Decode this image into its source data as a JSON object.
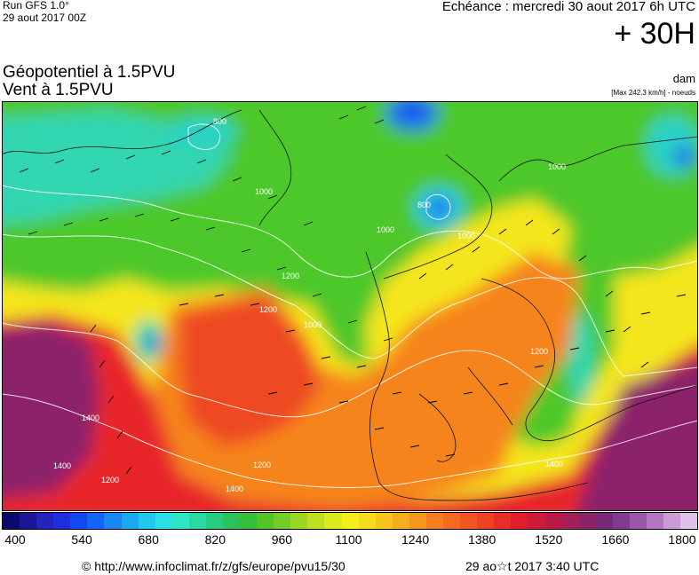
{
  "header": {
    "run_label": "Run GFS 1.0°",
    "run_date": "29 aout 2017 00Z",
    "echeance": "Echéance : mercredi 30 aout 2017 6h UTC",
    "lead_time": "+ 30H"
  },
  "titles": {
    "line1": "Géopotentiel à 1.5PVU",
    "line2": "Vent à 1.5PVU",
    "unit": "dam",
    "max_wind": "[Max 242.3 km/h] - noeuds"
  },
  "map": {
    "contour_labels": [
      "800",
      "800",
      "1000",
      "1000",
      "1000",
      "1000",
      "1000",
      "1200",
      "1200",
      "1200",
      "1200",
      "1200",
      "1400",
      "1400",
      "1400",
      "1400"
    ],
    "colors": {
      "purple": "#8a2a8f",
      "red": "#e8262a",
      "orange": "#f6761f",
      "yellow": "#f5e41c",
      "green": "#4cc72a",
      "teal": "#2bd6b4",
      "blue": "#1a78ea"
    }
  },
  "scale": {
    "ticks": [
      "400",
      "540",
      "680",
      "820",
      "960",
      "1100",
      "1240",
      "1380",
      "1520",
      "1660",
      "1800"
    ],
    "colors": [
      "#0b0a6c",
      "#1a1694",
      "#2323bd",
      "#1e2ede",
      "#1446f2",
      "#1464f6",
      "#1a86f2",
      "#1aa8ee",
      "#20c8ec",
      "#2ae0e4",
      "#30e4c4",
      "#2ad8a2",
      "#28cc7e",
      "#2ac25c",
      "#36be3a",
      "#52c42a",
      "#74cc26",
      "#9ad622",
      "#bede20",
      "#dcea1e",
      "#f4ee1c",
      "#f6dc1c",
      "#f6c61c",
      "#f6ae1c",
      "#f6961e",
      "#f67e20",
      "#f46a20",
      "#f25620",
      "#ee4222",
      "#e82e26",
      "#e01e2a",
      "#cc1c36",
      "#b81c46",
      "#a41e58",
      "#8c226a",
      "#7a287a",
      "#823a90",
      "#9a56a8",
      "#b476c0",
      "#cc9ad6",
      "#e0c2e8"
    ]
  },
  "footer": {
    "url": "© http://www.infoclimat.fr/z/gfs/europe/pvu15/30",
    "time": "29 ao☆t 2017  3:40 UTC"
  }
}
